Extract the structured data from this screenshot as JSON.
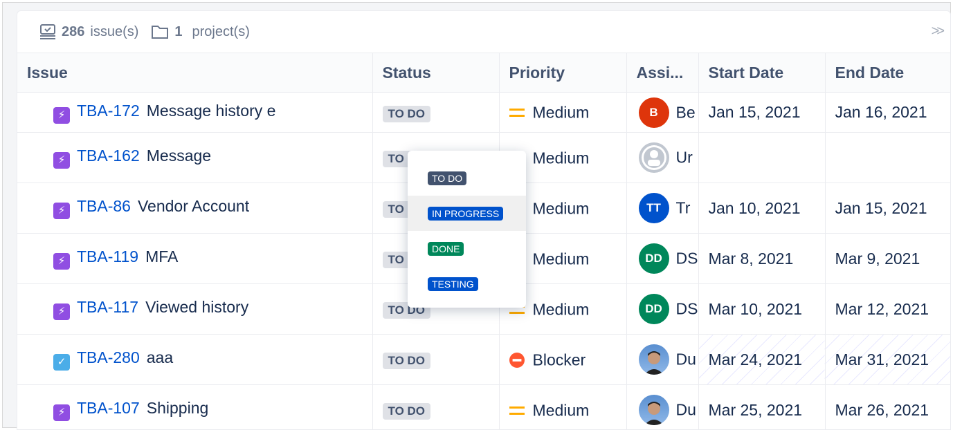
{
  "summary": {
    "issue_count": "286",
    "issue_label": "issue(s)",
    "project_count": "1",
    "project_label": "project(s)"
  },
  "columns": [
    "Issue",
    "Status",
    "Priority",
    "Assi...",
    "Start Date",
    "End Date"
  ],
  "rows": [
    {
      "type": "epic",
      "key": "TBA-172",
      "title": "Message history e",
      "status": "TO DO",
      "priority": "Medium",
      "assignee_initials": "B",
      "assignee_color": "#de350b",
      "assignee": "Be",
      "start": "Jan 15, 2021",
      "end": "Jan 16, 2021"
    },
    {
      "type": "epic",
      "key": "TBA-162",
      "title": "Message",
      "status": "TO DO",
      "priority": "Medium",
      "assignee_initials": "",
      "assignee_color": "#c1c7d0",
      "assignee": "Ur",
      "start": "",
      "end": ""
    },
    {
      "type": "epic",
      "key": "TBA-86",
      "title": "Vendor Account",
      "status": "TO DO",
      "priority": "Medium",
      "assignee_initials": "TT",
      "assignee_color": "#0052cc",
      "assignee": "Tr",
      "start": "Jan 10, 2021",
      "end": "Jan 15, 2021"
    },
    {
      "type": "epic",
      "key": "TBA-119",
      "title": "MFA",
      "status": "TO DO",
      "priority": "Medium",
      "assignee_initials": "DD",
      "assignee_color": "#00875a",
      "assignee": "DS",
      "start": "Mar 8, 2021",
      "end": "Mar 9, 2021"
    },
    {
      "type": "epic",
      "key": "TBA-117",
      "title": "Viewed history",
      "status": "TO DO",
      "priority": "Medium",
      "assignee_initials": "DD",
      "assignee_color": "#00875a",
      "assignee": "DS",
      "start": "Mar 10, 2021",
      "end": "Mar 12, 2021"
    },
    {
      "type": "task",
      "key": "TBA-280",
      "title": "aaa",
      "status": "TO DO",
      "priority": "Blocker",
      "assignee_initials": "",
      "assignee_color": "#5a8fd0",
      "assignee": "Du",
      "start": "Mar 24, 2021",
      "end": "Mar 31, 2021"
    },
    {
      "type": "epic",
      "key": "TBA-107",
      "title": "Shipping",
      "status": "TO DO",
      "priority": "Medium",
      "assignee_initials": "",
      "assignee_color": "#5a8fd0",
      "assignee": "Du",
      "start": "Mar 25, 2021",
      "end": "Mar 26, 2021"
    }
  ],
  "status_dropdown": [
    {
      "label": "TO DO",
      "color": "#42526e"
    },
    {
      "label": "IN PROGRESS",
      "color": "#0052cc"
    },
    {
      "label": "DONE",
      "color": "#00875a"
    },
    {
      "label": "TESTING",
      "color": "#0052cc"
    }
  ],
  "colors": {
    "epic": "#904ee2",
    "task": "#4bade8",
    "link": "#0052cc",
    "medium": "#ffab00",
    "blocker": "#ff5630"
  }
}
